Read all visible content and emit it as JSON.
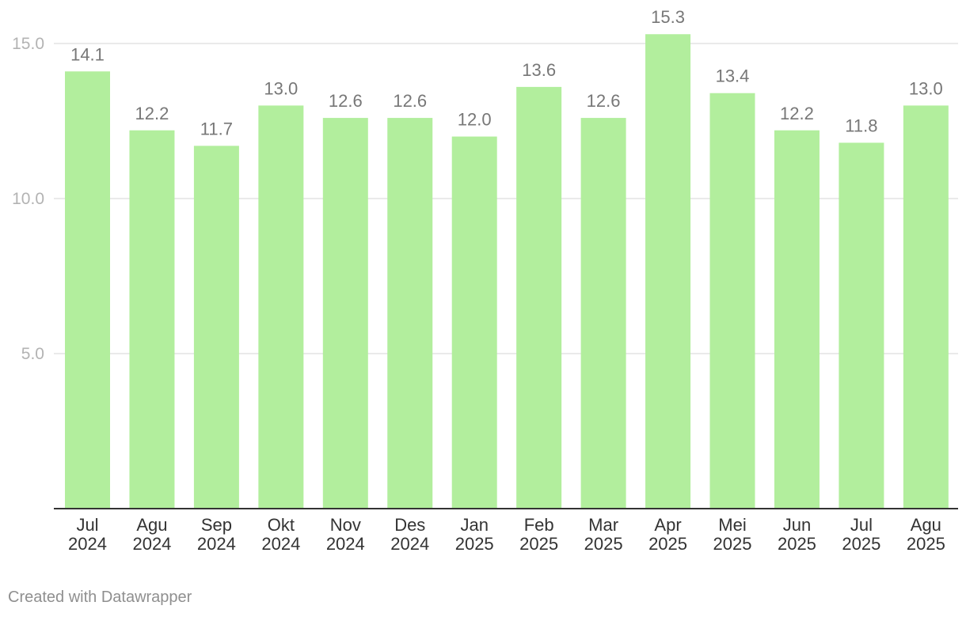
{
  "chart_data": {
    "type": "bar",
    "categories": [
      [
        "Jul",
        "2024"
      ],
      [
        "Agu",
        "2024"
      ],
      [
        "Sep",
        "2024"
      ],
      [
        "Okt",
        "2024"
      ],
      [
        "Nov",
        "2024"
      ],
      [
        "Des",
        "2024"
      ],
      [
        "Jan",
        "2025"
      ],
      [
        "Feb",
        "2025"
      ],
      [
        "Mar",
        "2025"
      ],
      [
        "Apr",
        "2025"
      ],
      [
        "Mei",
        "2025"
      ],
      [
        "Jun",
        "2025"
      ],
      [
        "Jul",
        "2025"
      ],
      [
        "Agu",
        "2025"
      ]
    ],
    "values": [
      14.1,
      12.2,
      11.7,
      13.0,
      12.6,
      12.6,
      12.0,
      13.6,
      12.6,
      15.3,
      13.4,
      12.2,
      11.8,
      13.0
    ],
    "data_labels": [
      "14.1",
      "12.2",
      "11.7",
      "13.0",
      "12.6",
      "12.6",
      "12.0",
      "13.6",
      "12.6",
      "15.3",
      "13.4",
      "12.2",
      "11.8",
      "13.0"
    ],
    "yticks": [
      5.0,
      10.0,
      15.0
    ],
    "ytick_labels": [
      "5.0",
      "10.0",
      "15.0"
    ],
    "ylim": [
      0,
      15.3
    ],
    "grid": true,
    "bar_color": "#b2ee9d",
    "title": "",
    "xlabel": "",
    "ylabel": ""
  },
  "footer": {
    "credit": "Created with Datawrapper"
  }
}
